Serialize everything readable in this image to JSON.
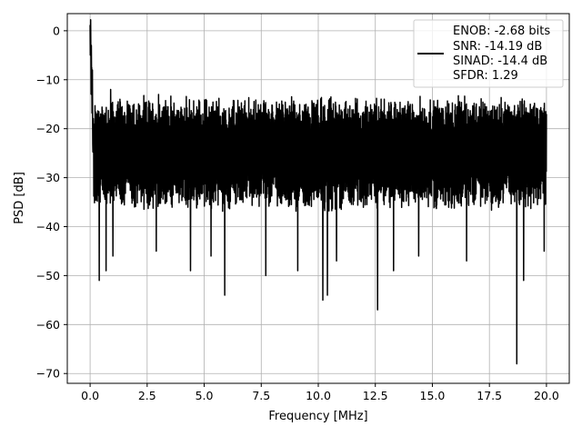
{
  "chart_data": {
    "type": "line",
    "title": "",
    "xlabel": "Frequency [MHz]",
    "ylabel": "PSD [dB]",
    "xlim": [
      -1.0,
      21.0
    ],
    "ylim": [
      -72.0,
      3.5
    ],
    "xticks": [
      0.0,
      2.5,
      5.0,
      7.5,
      10.0,
      12.5,
      15.0,
      17.5,
      20.0
    ],
    "xtick_labels": [
      "0.0",
      "2.5",
      "5.0",
      "7.5",
      "10.0",
      "12.5",
      "15.0",
      "17.5",
      "20.0"
    ],
    "yticks": [
      0,
      -10,
      -20,
      -30,
      -40,
      -50,
      -60,
      -70
    ],
    "ytick_labels": [
      "0",
      "−10",
      "−20",
      "−30",
      "−40",
      "−50",
      "−60",
      "−70"
    ],
    "grid": true,
    "legend_placement": "top-right",
    "legend": [
      "ENOB: -2.68 bits",
      "SNR: -14.19 dB",
      "SINAD: -14.4 dB",
      "SFDR: 1.29"
    ],
    "series": [
      {
        "color": "#000000",
        "x_range": [
          0.0,
          20.0
        ],
        "noise_floor_center": -25,
        "noise_upper_typical": -16,
        "noise_lower_typical": -36,
        "peak_near_dc": -1,
        "dc_region_mhz": 0.15,
        "dips": [
          {
            "x": 0.4,
            "y": -51
          },
          {
            "x": 0.7,
            "y": -49
          },
          {
            "x": 1.0,
            "y": -46
          },
          {
            "x": 2.9,
            "y": -45
          },
          {
            "x": 4.4,
            "y": -49
          },
          {
            "x": 5.3,
            "y": -46
          },
          {
            "x": 5.9,
            "y": -54
          },
          {
            "x": 7.7,
            "y": -50
          },
          {
            "x": 9.1,
            "y": -49
          },
          {
            "x": 10.2,
            "y": -55
          },
          {
            "x": 10.4,
            "y": -54
          },
          {
            "x": 10.8,
            "y": -47
          },
          {
            "x": 12.6,
            "y": -57
          },
          {
            "x": 13.3,
            "y": -49
          },
          {
            "x": 14.4,
            "y": -46
          },
          {
            "x": 16.5,
            "y": -47
          },
          {
            "x": 18.7,
            "y": -68
          },
          {
            "x": 19.0,
            "y": -51
          },
          {
            "x": 19.9,
            "y": -45
          }
        ],
        "spikes": [
          {
            "x": 0.05,
            "y": -3
          },
          {
            "x": 0.1,
            "y": -8
          },
          {
            "x": 0.9,
            "y": -12
          },
          {
            "x": 3.0,
            "y": -13
          },
          {
            "x": 20.0,
            "y": -17
          }
        ]
      }
    ]
  }
}
